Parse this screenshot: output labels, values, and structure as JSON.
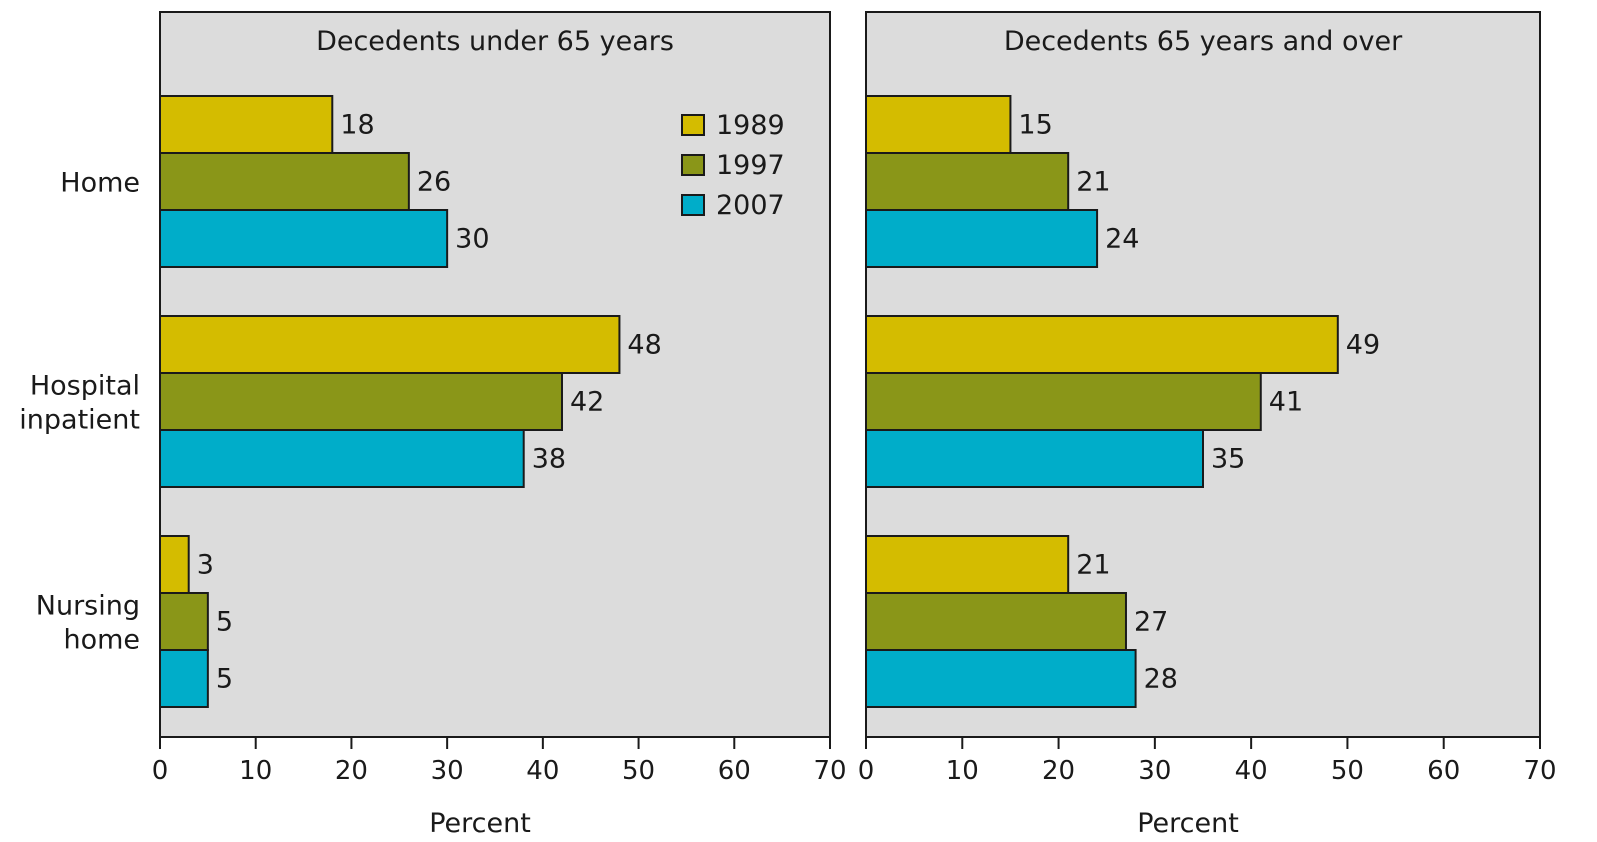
{
  "chart_data": {
    "type": "bar",
    "orientation": "horizontal",
    "categories": [
      [
        "Home"
      ],
      [
        "Hospital",
        "inpatient"
      ],
      [
        "Nursing",
        "home"
      ]
    ],
    "xlim": [
      0,
      70
    ],
    "xticks": [
      0,
      10,
      20,
      30,
      40,
      50,
      60,
      70
    ],
    "xlabel": "Percent",
    "grid": false,
    "legend": {
      "placement": "top-right of left panel",
      "entries": [
        "1989",
        "1997",
        "2007"
      ]
    },
    "colors": {
      "1989": "#d4bc00",
      "1997": "#8a9618",
      "2007": "#00adc9",
      "panel_background": "#dcdcdc"
    },
    "panels": [
      {
        "title": "Decedents under 65 years",
        "series": [
          {
            "name": "1989",
            "values": [
              18,
              48,
              3
            ]
          },
          {
            "name": "1997",
            "values": [
              26,
              42,
              5
            ]
          },
          {
            "name": "2007",
            "values": [
              30,
              38,
              5
            ]
          }
        ]
      },
      {
        "title": "Decedents 65 years and over",
        "series": [
          {
            "name": "1989",
            "values": [
              15,
              49,
              21
            ]
          },
          {
            "name": "1997",
            "values": [
              21,
              41,
              27
            ]
          },
          {
            "name": "2007",
            "values": [
              24,
              35,
              28
            ]
          }
        ]
      }
    ]
  }
}
